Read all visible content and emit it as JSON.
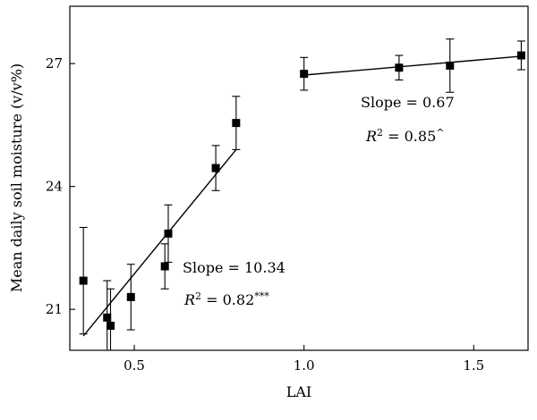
{
  "chart_data": {
    "type": "scatter",
    "xlabel": "LAI",
    "ylabel": "Mean daily soil moisture (v/v%)",
    "xlim": [
      0.31,
      1.66
    ],
    "ylim": [
      20.0,
      28.4
    ],
    "xticks": [
      0.5,
      1.0,
      1.5
    ],
    "xtick_labels": [
      "0.5",
      "1.0",
      "1.5"
    ],
    "yticks": [
      21,
      24,
      27
    ],
    "ytick_labels": [
      "21",
      "24",
      "27"
    ],
    "grid": false,
    "legend": "none",
    "series": [
      {
        "points": [
          {
            "x": 0.35,
            "y": 21.7,
            "err_low": 1.3,
            "err_high": 1.3
          },
          {
            "x": 0.42,
            "y": 20.8,
            "err_low": 0.9,
            "err_high": 0.9
          },
          {
            "x": 0.43,
            "y": 20.6,
            "err_low": 0.9,
            "err_high": 0.9
          },
          {
            "x": 0.49,
            "y": 21.3,
            "err_low": 0.8,
            "err_high": 0.8
          },
          {
            "x": 0.59,
            "y": 22.05,
            "err_low": 0.55,
            "err_high": 0.55
          },
          {
            "x": 0.6,
            "y": 22.85,
            "err_low": 0.7,
            "err_high": 0.7
          },
          {
            "x": 0.74,
            "y": 24.45,
            "err_low": 0.55,
            "err_high": 0.55
          },
          {
            "x": 0.8,
            "y": 25.55,
            "err_low": 0.65,
            "err_high": 0.65
          }
        ],
        "fit": {
          "x0": 0.35,
          "y0": 20.35,
          "x1": 0.8,
          "y1": 24.9
        }
      },
      {
        "points": [
          {
            "x": 1.0,
            "y": 26.75,
            "err_low": 0.4,
            "err_high": 0.4
          },
          {
            "x": 1.28,
            "y": 26.9,
            "err_low": 0.3,
            "err_high": 0.3
          },
          {
            "x": 1.43,
            "y": 26.95,
            "err_low": 0.65,
            "err_high": 0.65
          },
          {
            "x": 1.64,
            "y": 27.2,
            "err_low": 0.35,
            "err_high": 0.35
          }
        ],
        "fit": {
          "x0": 1.0,
          "y0": 26.72,
          "x1": 1.64,
          "y1": 27.18
        }
      }
    ],
    "annotations": [
      {
        "slope_label": "Slope = 10.34",
        "r2_prefix": "R",
        "r2_sup": "2",
        "r2_value": " = 0.82",
        "r2_mark": "***"
      },
      {
        "slope_label": "Slope = 0.67",
        "r2_prefix": "R",
        "r2_sup": "2",
        "r2_value": " = 0.85",
        "r2_mark": "^"
      }
    ]
  }
}
